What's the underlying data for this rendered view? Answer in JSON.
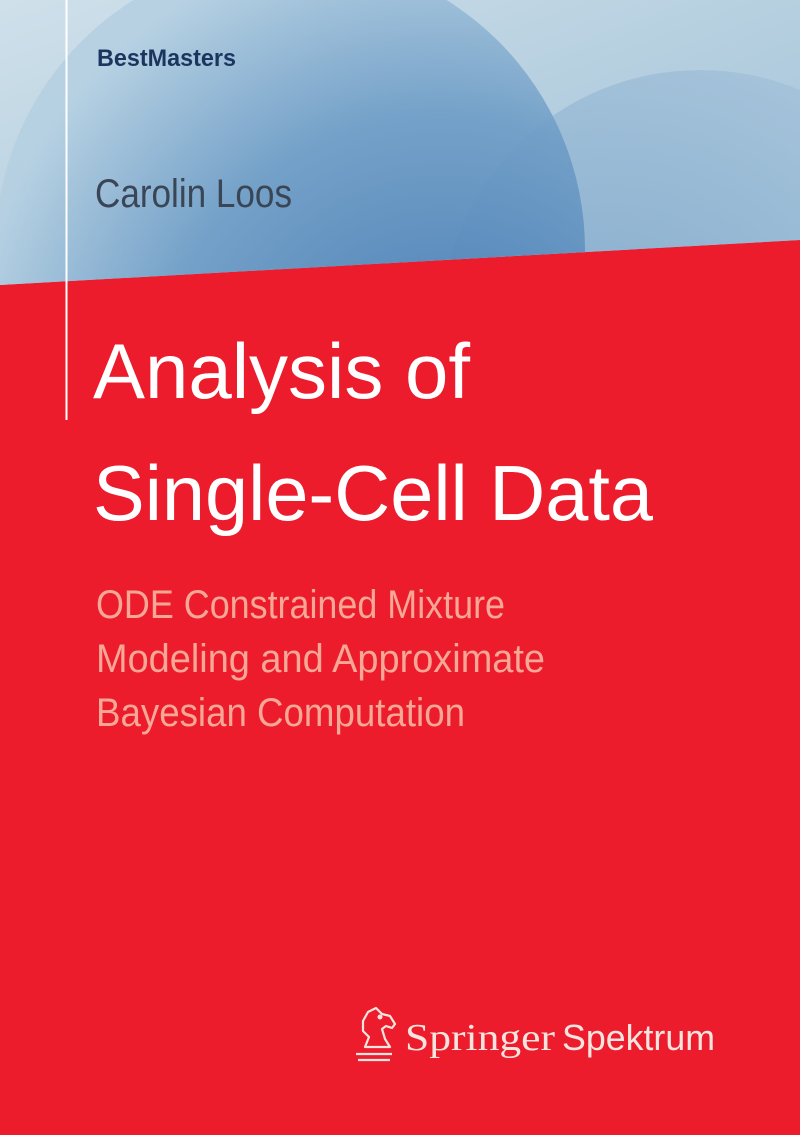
{
  "series_name": "BestMasters",
  "author": "Carolin Loos",
  "title": {
    "lines": [
      "Analysis of",
      "Single-Cell Data"
    ]
  },
  "subtitle": {
    "lines": [
      "ODE Constrained Mixture",
      "Modeling and Approximate",
      "Bayesian Computation"
    ]
  },
  "publisher": {
    "name": "Springer",
    "imprint": "Spektrum"
  }
}
